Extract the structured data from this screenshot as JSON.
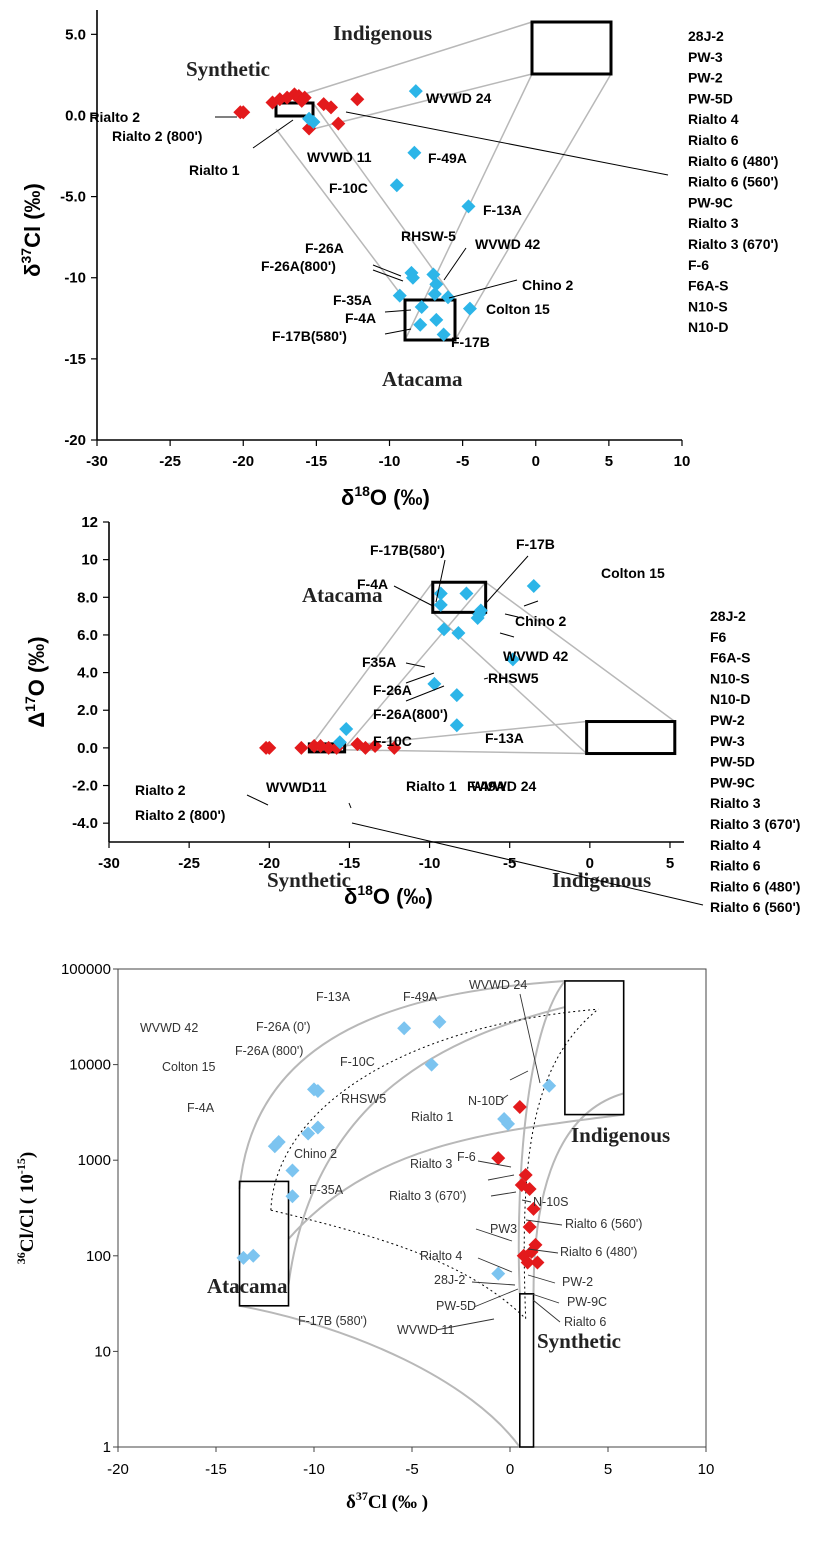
{
  "colors": {
    "synthetic_marker": "#e31a1c",
    "groundwater_marker": "#2cb5e8",
    "panel3_groundwater_marker": "#7cc4f0",
    "envelope": "#b8b8b8"
  },
  "chart_data": [
    {
      "type": "scatter",
      "xlabel_main": "δ",
      "xlabel_sup": "18",
      "xlabel_rest": "O (‰)",
      "ylabel_main": "δ",
      "ylabel_sup": "37",
      "ylabel_rest": "Cl (‰)",
      "xlim": [
        -30,
        10
      ],
      "ylim": [
        -20,
        6.5
      ],
      "xticks": [
        "-30",
        "-25",
        "-20",
        "-15",
        "-10",
        "-5",
        "0",
        "5",
        "10"
      ],
      "yticks": [
        "5.0",
        "0.0",
        "-5.0",
        "-10",
        "-15",
        "-20"
      ],
      "regions": [
        {
          "name": "Indigenous",
          "x": [
            0,
            5.5
          ],
          "y": [
            3.0,
            6.2
          ]
        },
        {
          "name": "Synthetic",
          "x": [
            -17,
            -14.7
          ],
          "y": [
            0.3,
            1.2
          ]
        },
        {
          "name": "Atacama",
          "x": [
            -8.7,
            -5.3
          ],
          "y": [
            -11.2,
            -13.5
          ]
        }
      ],
      "region_labels": [
        "Indigenous",
        "Synthetic",
        "Atacama"
      ],
      "series": [
        {
          "marker": "synthetic",
          "points": [
            {
              "x": -20.2,
              "y": 0.2
            },
            {
              "x": -20.0,
              "y": 0.2
            },
            {
              "x": -18.0,
              "y": 0.8
            },
            {
              "x": -17.5,
              "y": 1.0
            },
            {
              "x": -17.0,
              "y": 1.1
            },
            {
              "x": -16.5,
              "y": 1.3
            },
            {
              "x": -16.2,
              "y": 1.2
            },
            {
              "x": -15.8,
              "y": 1.1
            },
            {
              "x": -15.5,
              "y": -0.8
            },
            {
              "x": -14.5,
              "y": 0.7
            },
            {
              "x": -14.0,
              "y": 0.5
            },
            {
              "x": -13.5,
              "y": -0.5
            },
            {
              "x": -12.2,
              "y": 1.0
            },
            {
              "x": -16.0,
              "y": 0.9
            }
          ]
        },
        {
          "marker": "groundwater",
          "points": [
            {
              "x": -15.5,
              "y": -0.2
            },
            {
              "x": -15.2,
              "y": -0.4
            },
            {
              "x": -8.2,
              "y": 1.5
            },
            {
              "x": -8.3,
              "y": -2.3
            },
            {
              "x": -9.5,
              "y": -4.3
            },
            {
              "x": -4.6,
              "y": -5.6
            },
            {
              "x": -8.5,
              "y": -9.7
            },
            {
              "x": -8.4,
              "y": -10.0
            },
            {
              "x": -7.0,
              "y": -9.8
            },
            {
              "x": -6.8,
              "y": -10.4
            },
            {
              "x": -6.9,
              "y": -11.0
            },
            {
              "x": -9.3,
              "y": -11.1
            },
            {
              "x": -7.8,
              "y": -11.8
            },
            {
              "x": -6.0,
              "y": -11.2
            },
            {
              "x": -4.5,
              "y": -11.9
            },
            {
              "x": -7.9,
              "y": -12.9
            },
            {
              "x": -6.3,
              "y": -13.5
            },
            {
              "x": -6.8,
              "y": -12.6
            }
          ]
        }
      ],
      "annotations": [
        "Rialto 2",
        "Rialto 2 (800')",
        "Rialto 1",
        "WVWD 11",
        "WVWD 24",
        "F-49A",
        "F-10C",
        "F-13A",
        "RHSW-5",
        "WVWD 42",
        "F-26A",
        "F-26A(800')",
        "Chino 2",
        "F-35A",
        "Colton 15",
        "F-4A",
        "F-17B(580')",
        "F-17B"
      ],
      "legend_list": [
        "28J-2",
        "PW-3",
        "PW-2",
        "PW-5D",
        "Rialto 4",
        "Rialto 6",
        "Rialto 6 (480')",
        "Rialto 6 (560')",
        "PW-9C",
        "Rialto 3",
        "Rialto 3 (670')",
        "F-6",
        "F6A-S",
        "N10-S",
        "N10-D"
      ]
    },
    {
      "type": "scatter",
      "xlabel_main": "δ",
      "xlabel_sup": "18",
      "xlabel_rest": "O (‰)",
      "ylabel_main": "Δ",
      "ylabel_sup": "17",
      "ylabel_rest": "O (‰)",
      "xlim": [
        -30,
        5.5
      ],
      "ylim": [
        -5,
        12
      ],
      "xticks": [
        "-30",
        "-25",
        "-20",
        "-15",
        "-10",
        "-5",
        "0",
        "5"
      ],
      "yticks": [
        "12",
        "10",
        "8.0",
        "6.0",
        "4.0",
        "2.0",
        "0.0",
        "-2.0",
        "-4.0"
      ],
      "regions": [
        {
          "name": "Atacama",
          "x": [
            -9.8,
            -6.5
          ],
          "y": [
            7.2,
            8.8
          ]
        },
        {
          "name": "Synthetic",
          "x": [
            -17.5,
            -15.3
          ],
          "y": [
            -0.2,
            0.2
          ]
        },
        {
          "name": "Indigenous",
          "x": [
            -0.2,
            5.3
          ],
          "y": [
            -0.3,
            1.4
          ]
        }
      ],
      "region_labels": [
        "Atacama",
        "Synthetic",
        "Indigenous"
      ],
      "series": [
        {
          "marker": "synthetic",
          "points": [
            {
              "x": -20.2,
              "y": 0.0
            },
            {
              "x": -20.0,
              "y": 0.0
            },
            {
              "x": -18.0,
              "y": 0.0
            },
            {
              "x": -17.2,
              "y": 0.1
            },
            {
              "x": -16.8,
              "y": 0.1
            },
            {
              "x": -16.3,
              "y": 0.0
            },
            {
              "x": -15.8,
              "y": 0.0
            },
            {
              "x": -14.5,
              "y": 0.2
            },
            {
              "x": -14.0,
              "y": 0.0
            },
            {
              "x": -13.4,
              "y": 0.1
            },
            {
              "x": -12.2,
              "y": 0.0
            }
          ]
        },
        {
          "marker": "groundwater",
          "points": [
            {
              "x": -15.2,
              "y": 1.0
            },
            {
              "x": -15.6,
              "y": 0.3
            },
            {
              "x": -8.3,
              "y": 1.2
            },
            {
              "x": -8.3,
              "y": 2.8
            },
            {
              "x": -9.7,
              "y": 3.4
            },
            {
              "x": -4.8,
              "y": 4.7
            },
            {
              "x": -9.1,
              "y": 6.3
            },
            {
              "x": -8.2,
              "y": 6.1
            },
            {
              "x": -7.0,
              "y": 6.9
            },
            {
              "x": -6.8,
              "y": 7.3
            },
            {
              "x": -9.3,
              "y": 7.6
            },
            {
              "x": -9.3,
              "y": 8.2
            },
            {
              "x": -7.7,
              "y": 8.2
            },
            {
              "x": -3.5,
              "y": 8.6
            },
            {
              "x": -6.9,
              "y": 7.1
            }
          ]
        }
      ],
      "annotations": [
        "F-17B(580')",
        "F-17B",
        "Colton 15",
        "F-4A",
        "Chino 2",
        "WVWD 42",
        "F35A",
        "RHSW5",
        "F-26A",
        "F-26A(800')",
        "F-13A",
        "F-10C",
        "F-49A",
        "WVWD11",
        "Rialto 1",
        "WVWD 24",
        "Rialto 2",
        "Rialto 2 (800')"
      ],
      "legend_list": [
        "28J-2",
        "F6",
        "F6A-S",
        "N10-S",
        "N10-D",
        "PW-2",
        "PW-3",
        "PW-5D",
        "PW-9C",
        "Rialto 3",
        "Rialto 3 (670')",
        "Rialto 4",
        "Rialto 6",
        "Rialto 6 (480')",
        "Rialto 6 (560')"
      ]
    },
    {
      "type": "scatter",
      "log_y": true,
      "xlabel_main": "δ",
      "xlabel_sup": "37",
      "xlabel_rest": "Cl (‰ )",
      "ylabel_pre_sup": "36",
      "ylabel_main": "Cl/Cl",
      "ylabel_rest": "( 10",
      "ylabel_exp": "-15",
      "ylabel_close": ")",
      "xlim": [
        -20,
        10
      ],
      "ylim": [
        1,
        100000
      ],
      "xticks": [
        "-20",
        "-15",
        "-10",
        "-5",
        "0",
        "5",
        "10"
      ],
      "yticks": [
        "100000",
        "10000",
        "1000",
        "100",
        "10",
        "1"
      ],
      "regions": [
        {
          "name": "Indigenous",
          "x": [
            2.8,
            5.8
          ],
          "y": [
            3000,
            75000
          ]
        },
        {
          "name": "Atacama",
          "x": [
            -13.8,
            -11.3
          ],
          "y": [
            30,
            600
          ]
        },
        {
          "name": "Synthetic",
          "x": [
            0.5,
            1.2
          ],
          "y": [
            1,
            40
          ]
        }
      ],
      "region_labels": [
        "Indigenous",
        "Atacama",
        "Synthetic"
      ],
      "series": [
        {
          "marker": "synthetic",
          "points": [
            {
              "x": 0.5,
              "y": 3600
            },
            {
              "x": -0.6,
              "y": 1050
            },
            {
              "x": 0.8,
              "y": 700
            },
            {
              "x": 0.6,
              "y": 550
            },
            {
              "x": 1.0,
              "y": 500
            },
            {
              "x": 1.2,
              "y": 310
            },
            {
              "x": 1.0,
              "y": 200
            },
            {
              "x": 1.3,
              "y": 130
            },
            {
              "x": 1.1,
              "y": 110
            },
            {
              "x": 0.7,
              "y": 100
            },
            {
              "x": 0.9,
              "y": 85
            },
            {
              "x": 1.4,
              "y": 85
            }
          ]
        },
        {
          "marker": "groundwater",
          "points": [
            {
              "x": -5.4,
              "y": 24000
            },
            {
              "x": -3.6,
              "y": 28000
            },
            {
              "x": 2.0,
              "y": 6000
            },
            {
              "x": -4.0,
              "y": 10000
            },
            {
              "x": -9.8,
              "y": 5300
            },
            {
              "x": -10.0,
              "y": 5500
            },
            {
              "x": -9.8,
              "y": 2200
            },
            {
              "x": -10.3,
              "y": 1900
            },
            {
              "x": -12.0,
              "y": 1400
            },
            {
              "x": -11.8,
              "y": 1550
            },
            {
              "x": -11.1,
              "y": 780
            },
            {
              "x": -11.1,
              "y": 420
            },
            {
              "x": -13.6,
              "y": 95
            },
            {
              "x": -13.1,
              "y": 100
            },
            {
              "x": -0.3,
              "y": 2700
            },
            {
              "x": -0.1,
              "y": 2400
            },
            {
              "x": -0.6,
              "y": 65
            }
          ]
        }
      ],
      "annotations": [
        "F-13A",
        "F-49A",
        "WVWD 24",
        "F-26A (0')",
        "WVWD 42",
        "F-26A (800')",
        "F-10C",
        "Colton 15",
        "RHSW5",
        "F-4A",
        "N-10D",
        "Rialto 1",
        "Chino 2",
        "F-6",
        "Rialto 3",
        "F-35A",
        "Rialto 3 (670')",
        "N-10S",
        "Rialto 6 (560')",
        "PW3",
        "Rialto 6 (480')",
        "Rialto 4",
        "28J-2",
        "PW-2",
        "F-17B (580')",
        "PW-5D",
        "PW-9C",
        "Rialto 6",
        "WVWD 11"
      ]
    }
  ]
}
